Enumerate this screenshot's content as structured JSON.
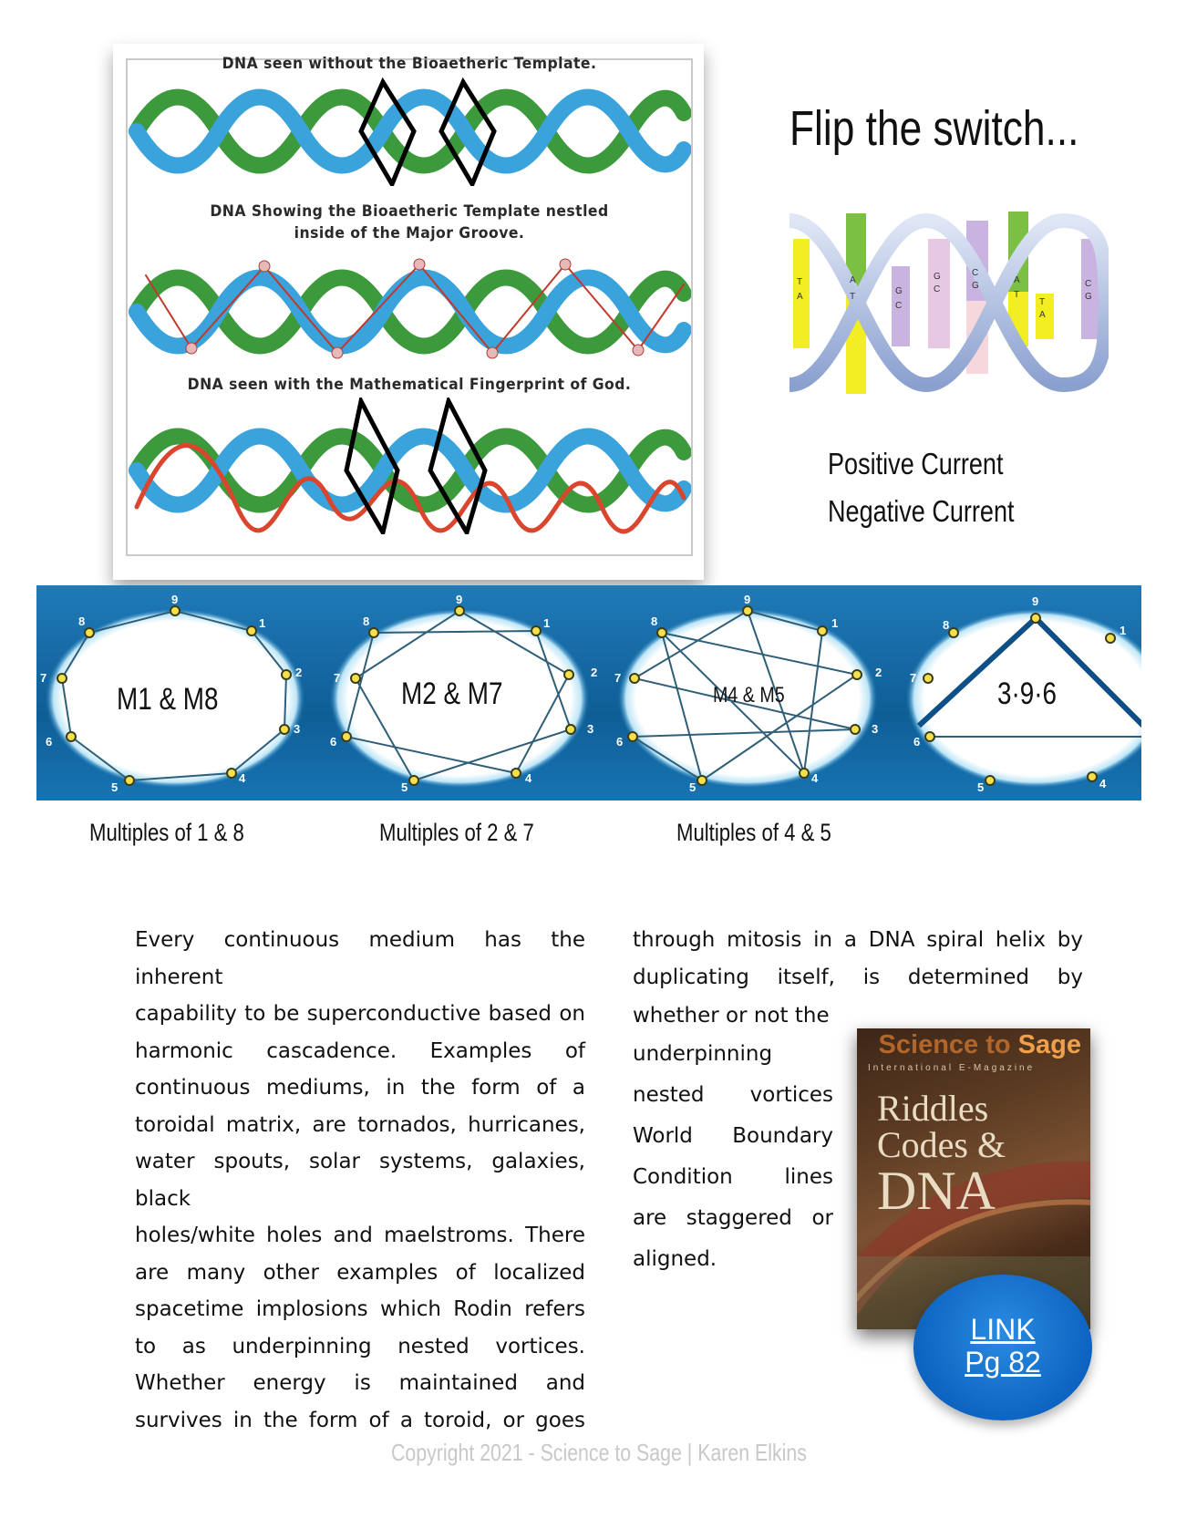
{
  "dna_figure": {
    "caption_top": "DNA seen without the Bioaetheric Template.",
    "caption_middle_1": "DNA Showing the Bioaetheric Template nestled",
    "caption_middle_2": "inside of the Major Groove.",
    "caption_bottom": "DNA seen with the Mathematical Fingerprint of God."
  },
  "flip_title": "Flip the switch...",
  "helix_letters": [
    "T",
    "A",
    "A",
    "T",
    "G",
    "C",
    "G",
    "C",
    "C",
    "G",
    "A",
    "T",
    "T",
    "A",
    "C",
    "G"
  ],
  "current": {
    "positive": "Positive Current",
    "negative": "Negative Current"
  },
  "band": {
    "panels": [
      {
        "label": "M1 & M8"
      },
      {
        "label": "M2 & M7"
      },
      {
        "label": "M4 & M5"
      },
      {
        "label": "3·9·6"
      }
    ],
    "node_numbers": [
      "1",
      "2",
      "3",
      "4",
      "5",
      "6",
      "7",
      "8",
      "9"
    ]
  },
  "multiples": [
    "Multiples of 1 & 8",
    "Multiples of 2 & 7",
    "Multiples of 4 & 5"
  ],
  "body": {
    "left_lines": [
      "Every continuous medium has the inherent",
      "capability to be superconductive based on",
      "harmonic cascadence. Examples of",
      "continuous mediums, in the form of a",
      "toroidal matrix, are tornados, hurricanes,",
      "water spouts, solar systems, galaxies, black",
      "holes/white holes and maelstroms. There",
      "are many other examples of localized",
      "spacetime implosions which Rodin refers",
      "to as underpinning nested vortices.",
      "Whether energy is maintained and",
      "survives in the form of a toroid, or goes"
    ],
    "right_top_lines": [
      "through mitosis in a DNA spiral helix by",
      "duplicating itself, is determined by",
      "whether or not the"
    ],
    "right_narrow_lines": [
      "underpinning",
      "nested vortices",
      "World Boundary",
      "Condition lines",
      "are staggered or",
      "aligned."
    ]
  },
  "magazine": {
    "brand_a": "Science to",
    "brand_b": "Sage",
    "subtitle": "International E-Magazine",
    "title_1": "Riddles",
    "title_2": "Codes &",
    "title_3": "DNA"
  },
  "link_button": {
    "line1": "LINK",
    "line2": "Pg 82"
  },
  "copyright": "Copyright 2021 - Science to Sage | Karen Elkins"
}
